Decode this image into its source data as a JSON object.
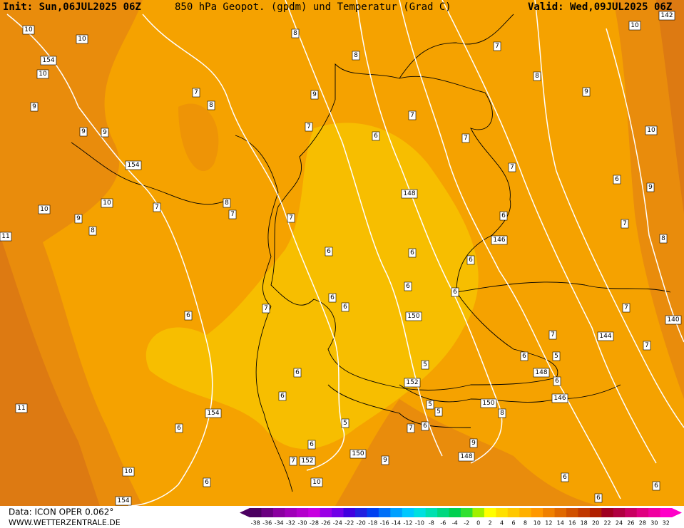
{
  "header": {
    "init": "Init: Sun,06JUL2025 06Z",
    "title": "850 hPa Geopot. (gpdm) und Temperatur (Grad C)",
    "valid": "Valid: Wed,09JUL2025 06Z"
  },
  "footer": {
    "source": "Data: ICON OPER 0.062°",
    "site": "WWW.WETTERZENTRALE.DE"
  },
  "colorbar": {
    "labels": [
      -38,
      -36,
      -34,
      -32,
      -30,
      -28,
      -26,
      -24,
      -22,
      -20,
      -18,
      -16,
      -14,
      -12,
      -10,
      -8,
      -6,
      -4,
      -2,
      0,
      2,
      4,
      6,
      8,
      10,
      12,
      14,
      16,
      18,
      20,
      22,
      24,
      26,
      28,
      30,
      32
    ],
    "colors": [
      "#4b0060",
      "#6a0080",
      "#8a00a0",
      "#a000b8",
      "#b400cc",
      "#c800e0",
      "#9a00e6",
      "#7000e8",
      "#4000e0",
      "#2020e0",
      "#0040f0",
      "#0070f8",
      "#00a0ff",
      "#00c8ff",
      "#00e0e0",
      "#00e0b0",
      "#00d880",
      "#00d050",
      "#30e030",
      "#a0f000",
      "#ffff00",
      "#ffe000",
      "#ffc800",
      "#ffb000",
      "#ff9800",
      "#f08000",
      "#e06800",
      "#d05000",
      "#c03800",
      "#b02000",
      "#a00020",
      "#b00040",
      "#c80060",
      "#e00080",
      "#f000a0",
      "#ff00c8"
    ]
  },
  "contour_labels": [
    "10",
    "10",
    "154",
    "10",
    "9",
    "9",
    "9",
    "154",
    "10",
    "10",
    "9",
    "8",
    "11",
    "7",
    "7",
    "8",
    "8",
    "8",
    "7",
    "8",
    "9",
    "10",
    "142",
    "10",
    "9",
    "7",
    "6",
    "7",
    "7",
    "7",
    "148",
    "6",
    "146",
    "6",
    "9",
    "7",
    "8",
    "8",
    "7",
    "7",
    "6",
    "6",
    "6",
    "6",
    "6",
    "6",
    "6",
    "7",
    "6",
    "150",
    "7",
    "140",
    "7",
    "144",
    "7",
    "6",
    "5",
    "148",
    "5",
    "6",
    "152",
    "6",
    "6",
    "146",
    "5",
    "5",
    "150",
    "8",
    "11",
    "154",
    "5",
    "7",
    "6",
    "6",
    "9",
    "6",
    "150",
    "148",
    "9",
    "7",
    "152",
    "10",
    "10",
    "6",
    "6",
    "6",
    "154",
    "6"
  ]
}
